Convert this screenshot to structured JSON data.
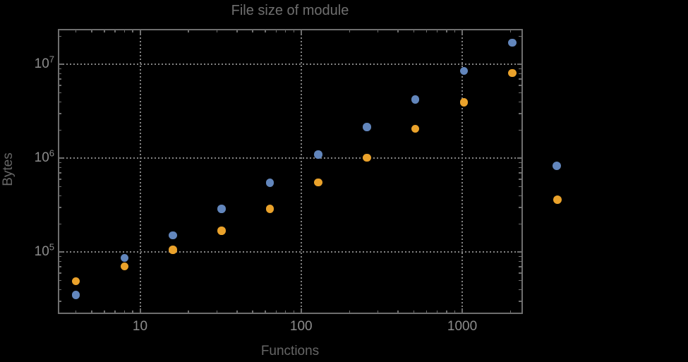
{
  "colors": {
    "background": "#000000",
    "frame": "#6e6e6e",
    "gridline": "#828282",
    "tick_label_text": "#8c8c8c",
    "axis_label_text": "#666666",
    "title_text": "#6f6f6f",
    "series_blue": "#6286bc",
    "series_orange": "#eaa22b"
  },
  "chart_data": {
    "type": "scatter",
    "title": "File size of module",
    "xlabel": "Functions",
    "ylabel": "Bytes",
    "x_scale": "log",
    "y_scale": "log",
    "grid": "dotted-at-major-ticks",
    "x_major_ticks": [
      {
        "label": "10",
        "value": 10
      },
      {
        "label": "100",
        "value": 100
      },
      {
        "label": "1000",
        "value": 1000
      }
    ],
    "y_major_ticks": [
      {
        "base": "10",
        "exp": "5",
        "value": 100000
      },
      {
        "base": "10",
        "exp": "6",
        "value": 1000000
      },
      {
        "base": "10",
        "exp": "7",
        "value": 10000000
      }
    ],
    "x_range_log": [
      0.4874,
      3.3745
    ],
    "y_range_log": [
      4.342,
      7.383
    ],
    "series": [
      {
        "name": "series-blue",
        "color": "#6286bc",
        "x": [
          4,
          8,
          16,
          32,
          64,
          128,
          256,
          512,
          1024,
          2048
        ],
        "y": [
          35000,
          87000,
          152000,
          290000,
          550000,
          1100000,
          2160000,
          4250000,
          8550000,
          17100000
        ]
      },
      {
        "name": "series-orange",
        "color": "#eaa22b",
        "x": [
          4,
          8,
          16,
          32,
          64,
          128,
          256,
          512,
          1024,
          2048
        ],
        "y": [
          49000,
          71000,
          106000,
          170000,
          290000,
          555000,
          1020000,
          2060000,
          3960000,
          8150000
        ]
      }
    ],
    "legend": {
      "position": "right-outside-center",
      "labels_visible": false,
      "items": [
        {
          "marker_color": "#6286bc"
        },
        {
          "marker_color": "#eaa22b"
        }
      ]
    }
  }
}
